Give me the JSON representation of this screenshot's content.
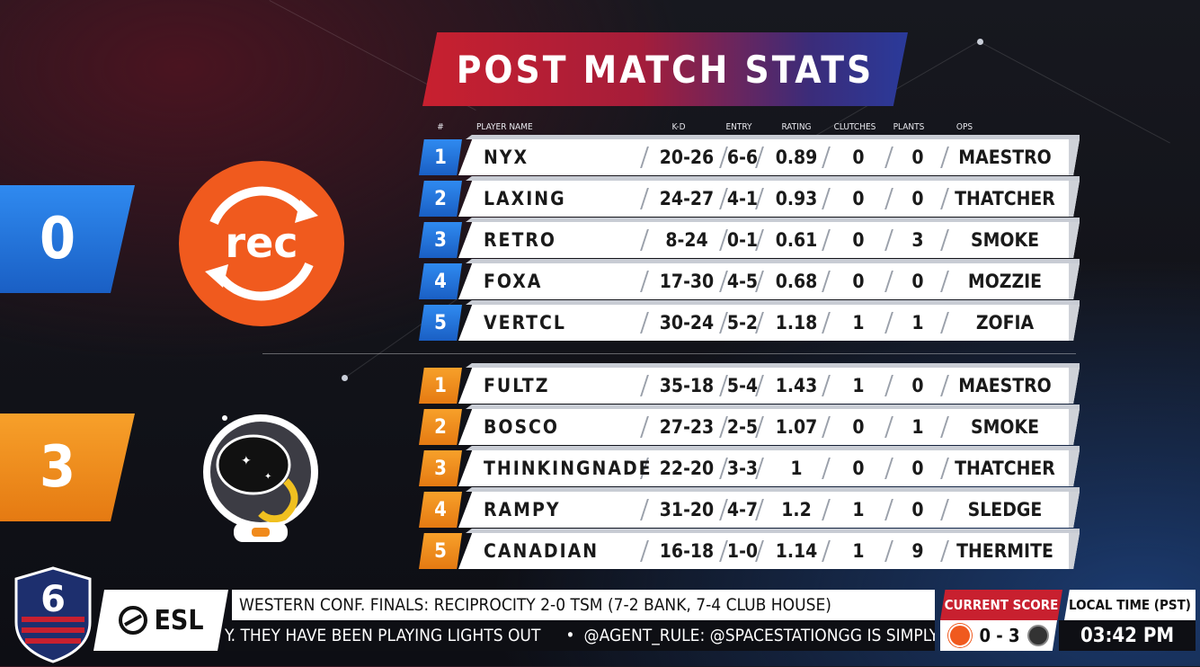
{
  "title": "POST MATCH STATS",
  "columns": {
    "num": "#",
    "player": "PLAYER NAME",
    "kd": "K-D",
    "entry": "ENTRY",
    "rating": "RATING",
    "clutches": "CLUTCHES",
    "plants": "PLANTS",
    "ops": "OPS"
  },
  "colors": {
    "rec_blue": "#1f6fd6",
    "tsm_orange": "#f08a1c",
    "rec_logo": "#f05a1e",
    "banner_red": "#c8202f",
    "banner_blue": "#2a3a9a"
  },
  "team1": {
    "score": "0",
    "logo_text": "rec",
    "players": [
      {
        "num": "1",
        "name": "NYX",
        "kd": "20-26",
        "entry": "6-6",
        "rating": "0.89",
        "clutches": "0",
        "plants": "0",
        "ops": "MAESTRO"
      },
      {
        "num": "2",
        "name": "LAXING",
        "kd": "24-27",
        "entry": "4-1",
        "rating": "0.93",
        "clutches": "0",
        "plants": "0",
        "ops": "THATCHER"
      },
      {
        "num": "3",
        "name": "RETRO",
        "kd": "8-24",
        "entry": "0-1",
        "rating": "0.61",
        "clutches": "0",
        "plants": "3",
        "ops": "SMOKE"
      },
      {
        "num": "4",
        "name": "FOXA",
        "kd": "17-30",
        "entry": "4-5",
        "rating": "0.68",
        "clutches": "0",
        "plants": "0",
        "ops": "MOZZIE"
      },
      {
        "num": "5",
        "name": "VERTCL",
        "kd": "30-24",
        "entry": "5-2",
        "rating": "1.18",
        "clutches": "1",
        "plants": "1",
        "ops": "ZOFIA"
      }
    ]
  },
  "team2": {
    "score": "3",
    "players": [
      {
        "num": "1",
        "name": "FULTZ",
        "kd": "35-18",
        "entry": "5-4",
        "rating": "1.43",
        "clutches": "1",
        "plants": "0",
        "ops": "MAESTRO"
      },
      {
        "num": "2",
        "name": "BOSCO",
        "kd": "27-23",
        "entry": "2-5",
        "rating": "1.07",
        "clutches": "0",
        "plants": "1",
        "ops": "SMOKE"
      },
      {
        "num": "3",
        "name": "THINKINGNADE",
        "kd": "22-20",
        "entry": "3-3",
        "rating": "1",
        "clutches": "0",
        "plants": "0",
        "ops": "THATCHER"
      },
      {
        "num": "4",
        "name": "RAMPY",
        "kd": "31-20",
        "entry": "4-7",
        "rating": "1.2",
        "clutches": "1",
        "plants": "0",
        "ops": "SLEDGE"
      },
      {
        "num": "5",
        "name": "CANADIAN",
        "kd": "16-18",
        "entry": "1-0",
        "rating": "1.14",
        "clutches": "1",
        "plants": "9",
        "ops": "THERMITE"
      }
    ]
  },
  "bottom": {
    "game_logo_text": "6",
    "esl_label": "ESL",
    "ticker_top": "WESTERN CONF. FINALS: RECIPROCITY 2-0 TSM (7-2 BANK, 7-4 CLUB HOUSE)",
    "ticker_bottom_a": "Y. THEY HAVE BEEN PLAYING LIGHTS OUT",
    "ticker_bottom_b": "@AGENT_RULE: @SPACESTATIONGG IS SIMPLY MY FAVORITE TEA",
    "current_score_label": "CURRENT SCORE",
    "current_score": "0 - 3",
    "local_time_label": "LOCAL TIME (PST)",
    "local_time": "03:42 PM"
  }
}
